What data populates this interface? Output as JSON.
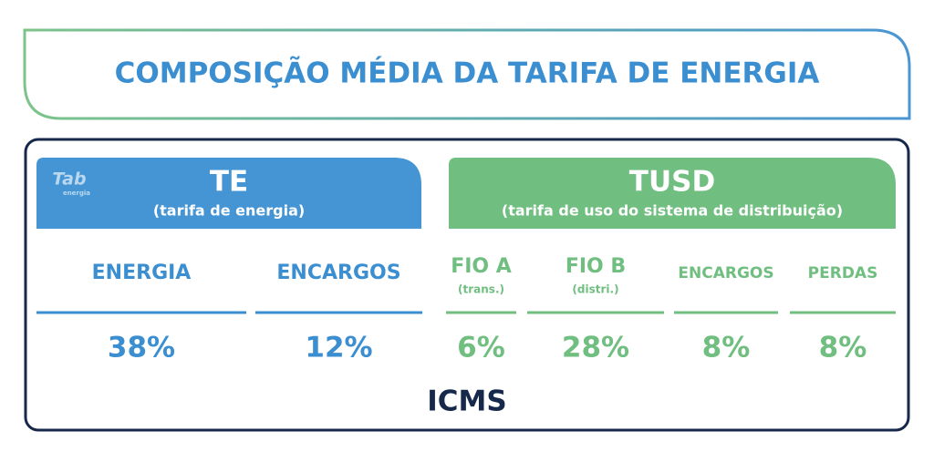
{
  "title": "COMPOSIÇÃO MÉDIA DA TARIFA DE ENERGIA",
  "logo": {
    "name": "Tab",
    "tagline": "energia"
  },
  "te": {
    "title": "TE",
    "subtitle": "(tarifa de energia)",
    "items": [
      {
        "label": "ENERGIA",
        "value": "38%"
      },
      {
        "label": "ENCARGOS",
        "value": "12%"
      }
    ]
  },
  "tusd": {
    "title": "TUSD",
    "subtitle": "(tarifa de uso do sistema de distribuição)",
    "items": [
      {
        "label": "FIO A",
        "note": "(trans.)",
        "value": "6%"
      },
      {
        "label": "FIO B",
        "note": "(distri.)",
        "value": "28%"
      },
      {
        "label": "ENCARGOS",
        "value": "8%"
      },
      {
        "label": "PERDAS",
        "value": "8%"
      }
    ]
  },
  "footer": "ICMS"
}
